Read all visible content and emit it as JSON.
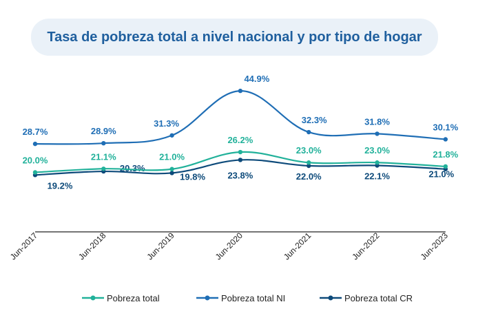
{
  "title": "Tasa de pobreza total a nivel nacional y por tipo de hogar",
  "colors": {
    "total": "#21b19a",
    "ni": "#1f6eb5",
    "cr": "#0d4a7a",
    "title_bg": "#eaf1f8",
    "title_text": "#1f5f9e",
    "axis": "#222222"
  },
  "chart_data": {
    "type": "line",
    "x": [
      "Jun-2017",
      "Jun-2018",
      "Jun-2019",
      "Jun-2020",
      "Jun-2021",
      "Jun-2022",
      "Jun-2023"
    ],
    "series": [
      {
        "name": "Pobreza total",
        "key": "total",
        "values": [
          20.0,
          21.1,
          21.0,
          26.2,
          23.0,
          23.0,
          21.8
        ],
        "labels": [
          "20.0%",
          "21.1%",
          "21.0%",
          "26.2%",
          "23.0%",
          "23.0%",
          "21.8%"
        ]
      },
      {
        "name": "Pobreza total NI",
        "key": "ni",
        "values": [
          28.7,
          28.9,
          31.3,
          44.9,
          32.3,
          31.8,
          30.1
        ],
        "labels": [
          "28.7%",
          "28.9%",
          "31.3%",
          "44.9%",
          "32.3%",
          "31.8%",
          "30.1%"
        ]
      },
      {
        "name": "Pobreza total CR",
        "key": "cr",
        "values": [
          19.2,
          20.3,
          19.8,
          23.8,
          22.0,
          22.1,
          21.0
        ],
        "labels": [
          "19.2%",
          "20.3%",
          "19.8%",
          "23.8%",
          "22.0%",
          "22.1%",
          "21.0%"
        ]
      }
    ],
    "legend_position": "bottom",
    "grid": false,
    "ylim": [
      18,
      46
    ]
  }
}
